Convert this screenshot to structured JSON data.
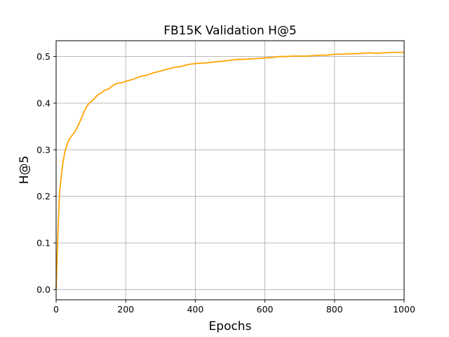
{
  "chart_data": {
    "type": "line",
    "title": "FB15K Validation H@5",
    "xlabel": "Epochs",
    "ylabel": "H@5",
    "xlim": [
      0,
      1000
    ],
    "ylim": [
      -0.022,
      0.534
    ],
    "xticks": [
      0,
      200,
      400,
      600,
      800,
      1000
    ],
    "yticks": [
      0.0,
      0.1,
      0.2,
      0.3,
      0.4,
      0.5
    ],
    "xtick_labels": [
      "0",
      "200",
      "400",
      "600",
      "800",
      "1000"
    ],
    "ytick_labels": [
      "0.0",
      "0.1",
      "0.2",
      "0.3",
      "0.4",
      "0.5"
    ],
    "grid": true,
    "series": [
      {
        "color": "#ffa500",
        "x": [
          0,
          5,
          10,
          15,
          20,
          25,
          30,
          35,
          40,
          45,
          50,
          55,
          60,
          65,
          70,
          75,
          80,
          85,
          90,
          95,
          100,
          110,
          120,
          130,
          140,
          150,
          160,
          170,
          180,
          190,
          200,
          220,
          240,
          260,
          280,
          300,
          320,
          340,
          360,
          380,
          400,
          420,
          440,
          460,
          480,
          500,
          520,
          540,
          560,
          580,
          600,
          620,
          640,
          660,
          680,
          700,
          720,
          740,
          760,
          780,
          800,
          820,
          840,
          860,
          880,
          900,
          920,
          940,
          960,
          980,
          1000
        ],
        "y": [
          0.0,
          0.12,
          0.21,
          0.245,
          0.275,
          0.295,
          0.308,
          0.318,
          0.325,
          0.33,
          0.335,
          0.34,
          0.347,
          0.355,
          0.363,
          0.372,
          0.381,
          0.389,
          0.395,
          0.4,
          0.403,
          0.41,
          0.418,
          0.422,
          0.428,
          0.43,
          0.436,
          0.441,
          0.443,
          0.444,
          0.447,
          0.451,
          0.457,
          0.46,
          0.465,
          0.469,
          0.473,
          0.477,
          0.479,
          0.483,
          0.485,
          0.486,
          0.487,
          0.489,
          0.49,
          0.492,
          0.494,
          0.494,
          0.495,
          0.496,
          0.497,
          0.498,
          0.5,
          0.5,
          0.501,
          0.501,
          0.501,
          0.502,
          0.503,
          0.503,
          0.505,
          0.505,
          0.506,
          0.506,
          0.507,
          0.508,
          0.507,
          0.508,
          0.509,
          0.509,
          0.509
        ]
      }
    ]
  }
}
